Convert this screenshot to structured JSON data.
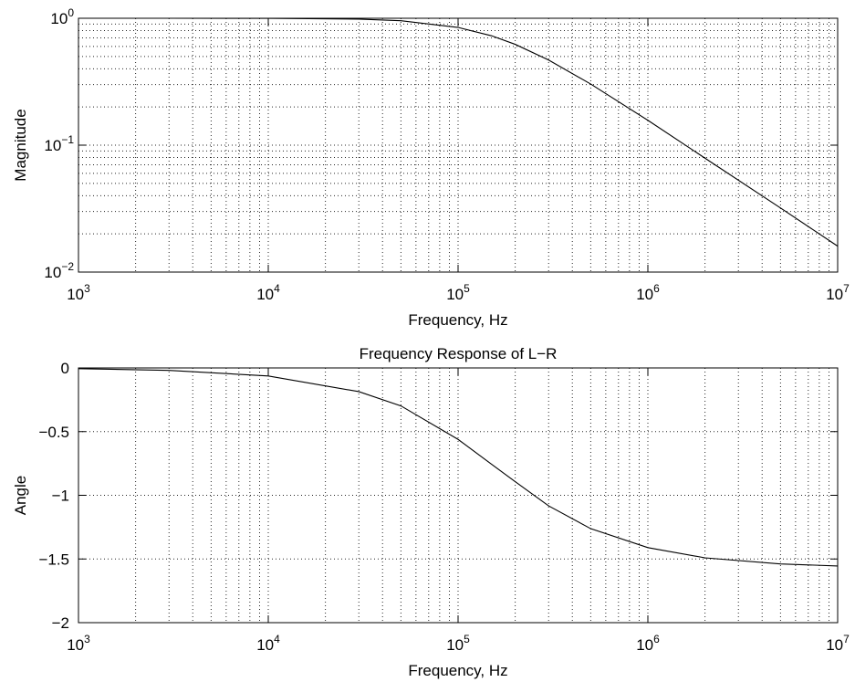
{
  "chart_data": [
    {
      "type": "line",
      "title": "",
      "xlabel": "Frequency, Hz",
      "ylabel": "Magnitude",
      "xscale": "log",
      "yscale": "log",
      "xlim": [
        1000,
        10000000
      ],
      "ylim": [
        0.01,
        1
      ],
      "grid": true,
      "x_ticks": [
        {
          "base": "10",
          "exp": "3"
        },
        {
          "base": "10",
          "exp": "4"
        },
        {
          "base": "10",
          "exp": "5"
        },
        {
          "base": "10",
          "exp": "6"
        },
        {
          "base": "10",
          "exp": "7"
        }
      ],
      "y_ticks": [
        {
          "base": "10",
          "exp": "−2"
        },
        {
          "base": "10",
          "exp": "−1"
        },
        {
          "base": "10",
          "exp": "0"
        }
      ],
      "series": [
        {
          "x": [
            1000,
            3000,
            10000,
            30000,
            50000,
            100000,
            150000,
            200000,
            300000,
            500000,
            1000000,
            2000000,
            5000000,
            10000000
          ],
          "y": [
            1.0,
            0.9998,
            0.998,
            0.984,
            0.957,
            0.847,
            0.728,
            0.623,
            0.469,
            0.303,
            0.157,
            0.079,
            0.032,
            0.016
          ]
        }
      ]
    },
    {
      "type": "line",
      "title": "Frequency Response of L−R",
      "xlabel": "Frequency, Hz",
      "ylabel": "Angle",
      "xscale": "log",
      "yscale": "linear",
      "xlim": [
        1000,
        10000000
      ],
      "ylim": [
        -2,
        0
      ],
      "grid": true,
      "x_ticks": [
        {
          "base": "10",
          "exp": "3"
        },
        {
          "base": "10",
          "exp": "4"
        },
        {
          "base": "10",
          "exp": "5"
        },
        {
          "base": "10",
          "exp": "6"
        },
        {
          "base": "10",
          "exp": "7"
        }
      ],
      "y_ticks": [
        "0",
        "−0.5",
        "−1",
        "−1.5",
        "−2"
      ],
      "y_tick_values": [
        0,
        -0.5,
        -1,
        -1.5,
        -2
      ],
      "series": [
        {
          "x": [
            1000,
            3000,
            10000,
            30000,
            50000,
            100000,
            150000,
            200000,
            300000,
            500000,
            1000000,
            2000000,
            5000000,
            10000000
          ],
          "y": [
            -0.006,
            -0.019,
            -0.063,
            -0.186,
            -0.298,
            -0.561,
            -0.756,
            -0.893,
            -1.083,
            -1.262,
            -1.411,
            -1.491,
            -1.539,
            -1.555
          ]
        }
      ]
    }
  ]
}
